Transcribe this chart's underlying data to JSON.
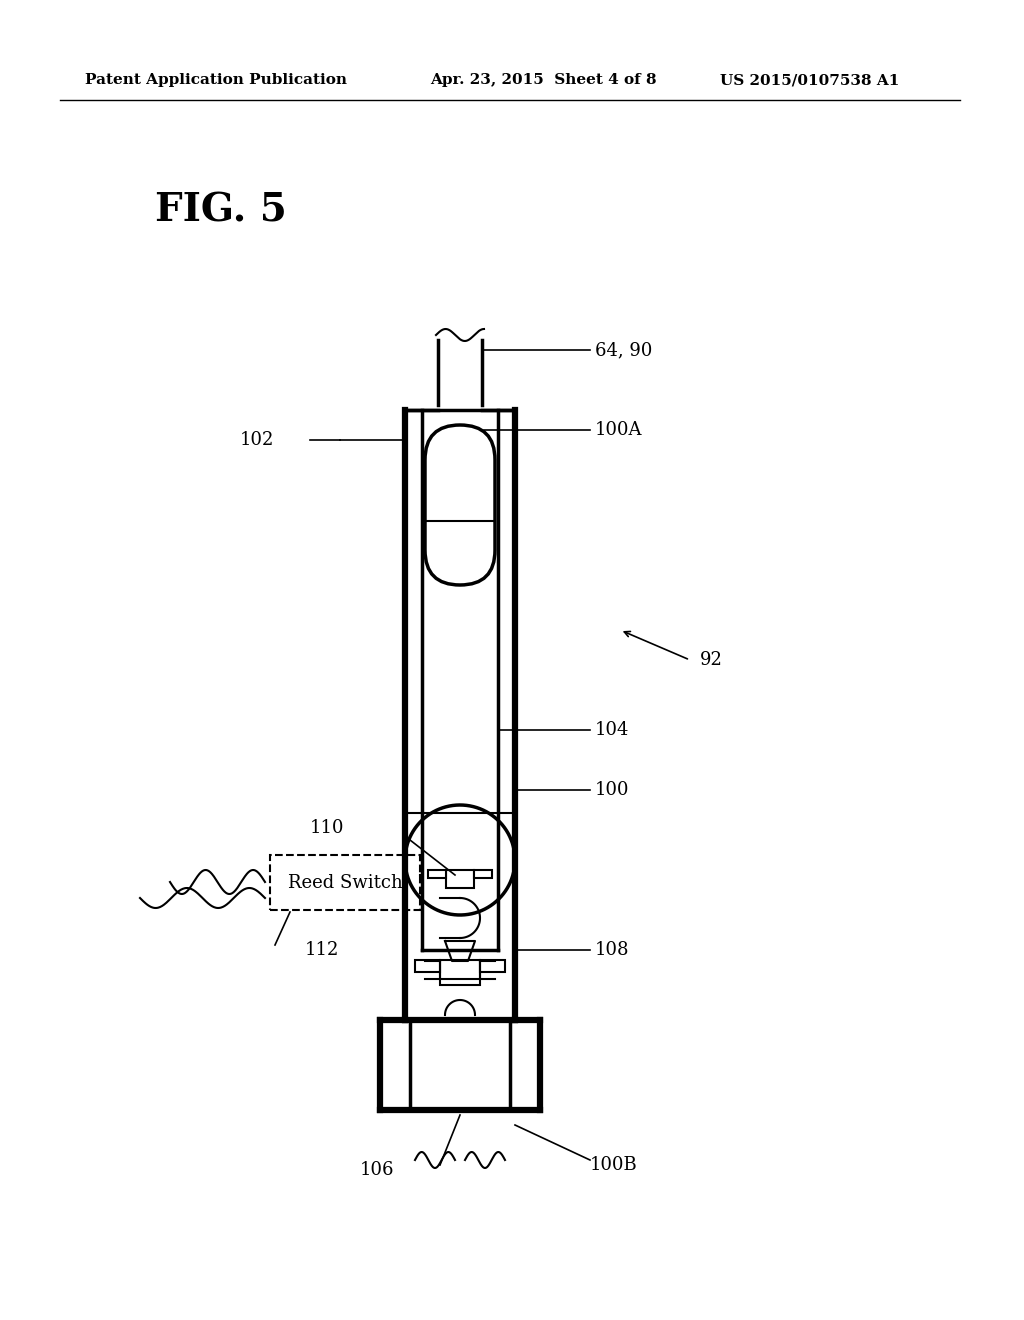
{
  "background_color": "#ffffff",
  "header_left": "Patent Application Publication",
  "header_center": "Apr. 23, 2015  Sheet 4 of 8",
  "header_right": "US 2015/0107538 A1",
  "fig_label": "FIG. 5",
  "labels": {
    "64_90": "64, 90",
    "100A": "100A",
    "102": "102",
    "92": "92",
    "104": "104",
    "100": "100",
    "110": "110",
    "reed_switch": "Reed Switch",
    "112": "112",
    "108": "108",
    "106": "106",
    "100B": "100B"
  }
}
